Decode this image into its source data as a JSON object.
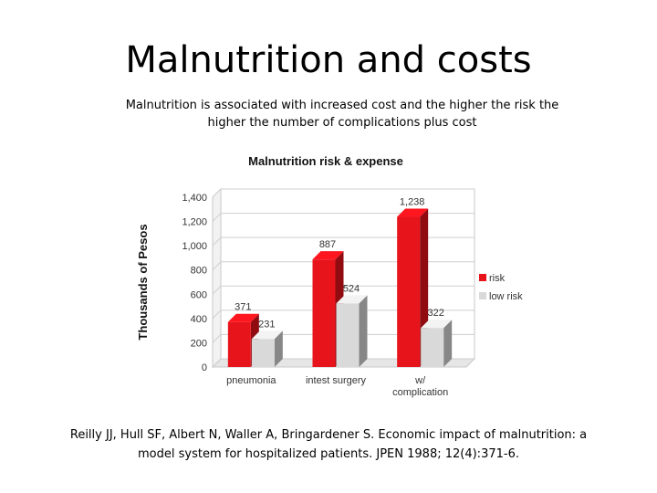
{
  "slide": {
    "title": "Malnutrition and costs",
    "subtitle": "Malnutrition  is associated with increased cost and the higher the risk the higher the number of complications plus cost",
    "citation": "Reilly JJ, Hull SF, Albert N, Waller A, Bringardener S. Economic impact of malnutrition: a model system for hospitalized patients. JPEN 1988; 12(4):371-6."
  },
  "chart_data": {
    "type": "bar",
    "title": "Malnutrition risk  & expense",
    "ylabel": "Thousands of Pesos",
    "xlabel": "",
    "categories": [
      "pneumonia",
      "intest surgery",
      "w/ complication"
    ],
    "series": [
      {
        "name": "risk",
        "values": [
          371,
          887,
          1238
        ],
        "labels": [
          "371",
          "887",
          "1,238"
        ],
        "color": "#e8141b"
      },
      {
        "name": "low risk",
        "values": [
          231,
          524,
          322
        ],
        "labels": [
          "231",
          "524",
          "322"
        ],
        "color": "#d9d9d9"
      }
    ],
    "ylim": [
      0,
      1400
    ],
    "yticks": [
      0,
      200,
      400,
      600,
      800,
      1000,
      1200,
      1400
    ],
    "ytick_labels": [
      "0",
      "200",
      "400",
      "600",
      "800",
      "1,000",
      "1,200",
      "1,400"
    ],
    "legend_position": "right",
    "style": "3d-clustered-bar"
  }
}
